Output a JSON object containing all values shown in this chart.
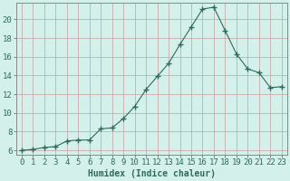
{
  "x": [
    0,
    1,
    2,
    3,
    4,
    5,
    6,
    7,
    8,
    9,
    10,
    11,
    12,
    13,
    14,
    15,
    16,
    17,
    18,
    19,
    20,
    21,
    22,
    23
  ],
  "y": [
    6.0,
    6.1,
    6.3,
    6.4,
    7.0,
    7.1,
    7.1,
    8.3,
    8.4,
    9.4,
    10.7,
    12.5,
    13.9,
    15.3,
    17.3,
    19.2,
    21.1,
    21.3,
    18.8,
    16.3,
    14.7,
    14.3,
    12.7,
    12.8
  ],
  "line_color": "#2e6b5e",
  "marker": "+",
  "marker_size": 4,
  "bg_color": "#d4f0ea",
  "grid_color_h": "#c8a0a0",
  "grid_color_v": "#c8a0a0",
  "xlabel": "Humidex (Indice chaleur)",
  "xlim": [
    -0.5,
    23.5
  ],
  "ylim": [
    5.5,
    21.8
  ],
  "yticks": [
    6,
    8,
    10,
    12,
    14,
    16,
    18,
    20
  ],
  "xticks": [
    0,
    1,
    2,
    3,
    4,
    5,
    6,
    7,
    8,
    9,
    10,
    11,
    12,
    13,
    14,
    15,
    16,
    17,
    18,
    19,
    20,
    21,
    22,
    23
  ],
  "xlabel_fontsize": 7,
  "tick_fontsize": 6.5,
  "tick_color": "#2e6b5e",
  "spine_color": "#888888"
}
